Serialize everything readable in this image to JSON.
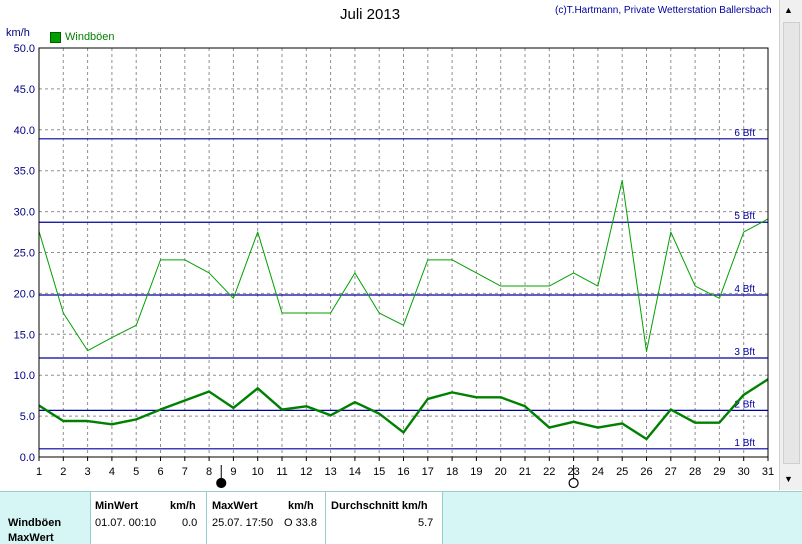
{
  "title": "Juli 2013",
  "copyright": "(c)T.Hartmann, Private Wetterstation Ballersbach",
  "unit_label": "km/h",
  "legend": {
    "label": "Windböen",
    "color": "#00a000"
  },
  "chart_data": {
    "type": "line",
    "title": "Juli 2013",
    "ylabel": "km/h",
    "xlim": [
      1,
      31
    ],
    "ylim": [
      0,
      50
    ],
    "x_ticks": [
      "1",
      "2",
      "3",
      "4",
      "5",
      "6",
      "7",
      "8",
      "9",
      "10",
      "11",
      "12",
      "13",
      "14",
      "15",
      "16",
      "17",
      "18",
      "19",
      "20",
      "21",
      "22",
      "23",
      "24",
      "25",
      "26",
      "27",
      "28",
      "29",
      "30",
      "31"
    ],
    "y_ticks": [
      "0.0",
      "5.0",
      "10.0",
      "15.0",
      "20.0",
      "25.0",
      "30.0",
      "35.0",
      "40.0",
      "45.0",
      "50.0"
    ],
    "grid": true,
    "series": [
      {
        "name": "Windböen",
        "style": "thin",
        "color": "#00a000",
        "x": [
          1,
          2,
          3,
          4,
          5,
          6,
          7,
          8,
          9,
          10,
          11,
          12,
          13,
          14,
          15,
          16,
          17,
          18,
          19,
          20,
          21,
          22,
          23,
          24,
          25,
          26,
          27,
          28,
          29,
          30,
          31
        ],
        "values": [
          27.6,
          17.6,
          13.0,
          14.6,
          16.1,
          24.1,
          24.1,
          22.5,
          19.4,
          27.5,
          17.6,
          17.6,
          17.6,
          22.5,
          17.6,
          16.1,
          24.1,
          24.1,
          22.5,
          20.9,
          20.9,
          20.9,
          22.5,
          20.9,
          33.8,
          12.9,
          27.5,
          20.9,
          19.4,
          27.5,
          29.1
        ]
      },
      {
        "style": "thick",
        "color": "#008000",
        "x": [
          1,
          2,
          3,
          4,
          5,
          6,
          7,
          8,
          9,
          10,
          11,
          12,
          13,
          14,
          15,
          16,
          17,
          18,
          19,
          20,
          21,
          22,
          23,
          24,
          25,
          26,
          27,
          28,
          29,
          30,
          31
        ],
        "values": [
          6.3,
          4.4,
          4.4,
          4.0,
          4.6,
          5.8,
          6.9,
          8.0,
          6.0,
          8.4,
          5.8,
          6.2,
          5.1,
          6.7,
          5.3,
          3.0,
          7.1,
          7.9,
          7.3,
          7.3,
          6.2,
          3.6,
          4.3,
          3.6,
          4.1,
          2.2,
          5.8,
          4.2,
          4.2,
          7.6,
          9.5
        ]
      }
    ],
    "beaufort_lines": [
      {
        "label": "1 Bft",
        "value": 1.0
      },
      {
        "label": "2 Bft",
        "value": 5.7
      },
      {
        "label": "3 Bft",
        "value": 12.1
      },
      {
        "label": "4 Bft",
        "value": 19.8
      },
      {
        "label": "5 Bft",
        "value": 28.7
      },
      {
        "label": "6 Bft",
        "value": 38.9
      }
    ],
    "moon_phases": [
      {
        "day": 8.5,
        "phase": "new"
      },
      {
        "day": 23,
        "phase": "full"
      }
    ]
  },
  "table": {
    "row_labels": [
      "Windböen",
      "MaxWert"
    ],
    "headers": {
      "min": "MinWert",
      "min_unit": "km/h",
      "max": "MaxWert",
      "max_unit": "km/h",
      "avg": "Durchschnitt km/h"
    },
    "min_time": "01.07.  00:10",
    "min_value": "0.0",
    "max_time": "25.07.  17:50",
    "max_value": "O 33.8",
    "avg_value": "5.7"
  }
}
